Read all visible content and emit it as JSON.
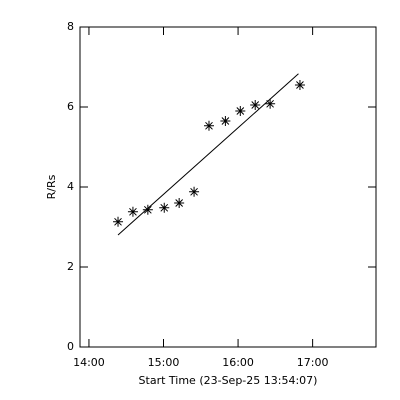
{
  "chart_data": {
    "type": "scatter",
    "x_label": "Start Time (23-Sep-25 13:54:07)",
    "y_label": "R/Rs",
    "x": [
      14.39,
      14.59,
      14.79,
      15.01,
      15.21,
      15.41,
      15.61,
      15.83,
      16.03,
      16.23,
      16.43,
      16.83
    ],
    "values": [
      3.13,
      3.38,
      3.43,
      3.48,
      3.6,
      3.88,
      5.53,
      5.65,
      5.9,
      6.05,
      6.08,
      6.55
    ],
    "fit": {
      "x": [
        14.39,
        16.81
      ],
      "values": [
        2.8,
        6.83
      ]
    },
    "color": "#000000",
    "xlim": [
      13.88,
      17.85
    ],
    "ylim": [
      0,
      8
    ],
    "xticks": [
      {
        "value": 14,
        "label": "14:00"
      },
      {
        "value": 15,
        "label": "15:00"
      },
      {
        "value": 16,
        "label": "16:00"
      },
      {
        "value": 17,
        "label": "17:00"
      }
    ],
    "yticks": [
      0,
      2,
      4,
      6,
      8
    ]
  }
}
